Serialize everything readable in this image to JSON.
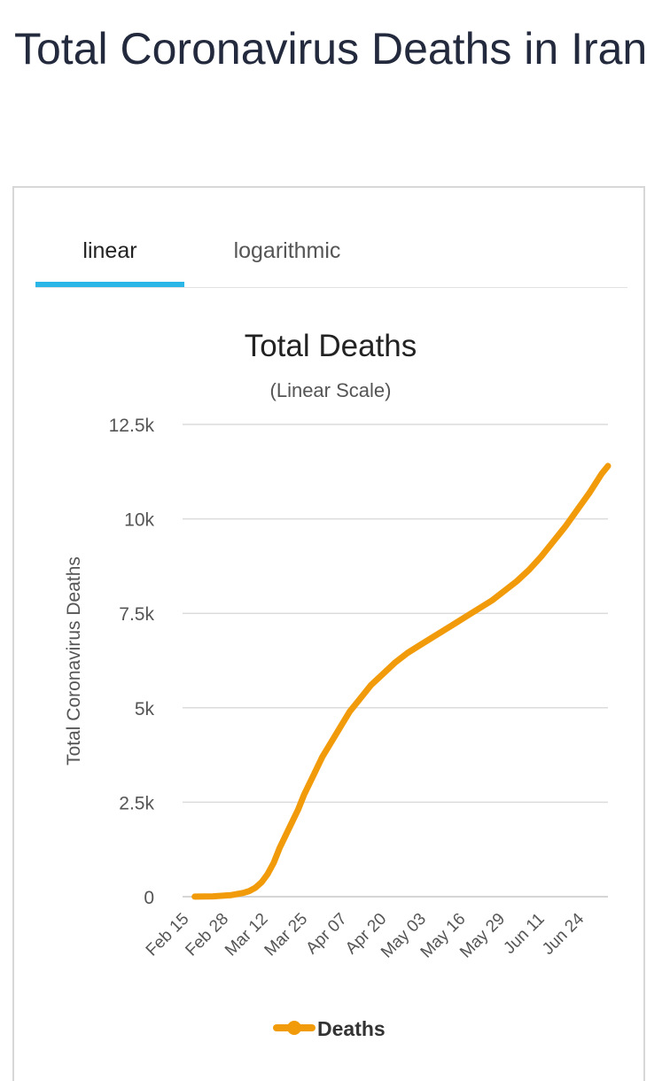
{
  "page": {
    "title": "Total Coronavirus Deaths in Iran"
  },
  "tabs": [
    {
      "label": "linear",
      "active": true
    },
    {
      "label": "logarithmic",
      "active": false
    }
  ],
  "colors": {
    "accent": "#2ab7e8",
    "series": "#f29b0a",
    "grid": "#dcdcdc",
    "text": "#333333"
  },
  "chart_data": {
    "type": "line",
    "title": "Total Deaths",
    "subtitle": "(Linear Scale)",
    "ylabel": "Total Coronavirus Deaths",
    "xlabel": "",
    "ylim": [
      0,
      12500
    ],
    "yticks": [
      0,
      2500,
      5000,
      7500,
      10000,
      12500
    ],
    "ytick_labels": [
      "0",
      "2.5k",
      "5k",
      "7.5k",
      "10k",
      "12.5k"
    ],
    "x_tick_labels": [
      "Feb 15",
      "Feb 28",
      "Mar 12",
      "Mar 25",
      "Apr 07",
      "Apr 20",
      "May 03",
      "May 16",
      "May 29",
      "Jun 11",
      "Jun 24"
    ],
    "x_tick_days": [
      0,
      13,
      26,
      39,
      52,
      65,
      78,
      91,
      104,
      117,
      130
    ],
    "xlim_days": [
      0,
      140
    ],
    "grid": true,
    "legend": "bottom",
    "series": [
      {
        "name": "Deaths",
        "x_days": [
          4,
          10,
          16,
          20,
          22,
          24,
          26,
          28,
          30,
          32,
          35,
          38,
          40,
          43,
          46,
          49,
          52,
          55,
          58,
          62,
          66,
          70,
          74,
          78,
          82,
          86,
          90,
          94,
          98,
          102,
          106,
          110,
          114,
          118,
          122,
          126,
          130,
          134,
          138,
          140
        ],
        "values": [
          2,
          10,
          43,
          100,
          150,
          240,
          380,
          600,
          900,
          1300,
          1800,
          2300,
          2700,
          3200,
          3700,
          4100,
          4500,
          4900,
          5200,
          5600,
          5900,
          6200,
          6450,
          6650,
          6850,
          7050,
          7250,
          7450,
          7650,
          7850,
          8100,
          8350,
          8650,
          9000,
          9400,
          9800,
          10250,
          10700,
          11200,
          11400
        ]
      }
    ]
  }
}
